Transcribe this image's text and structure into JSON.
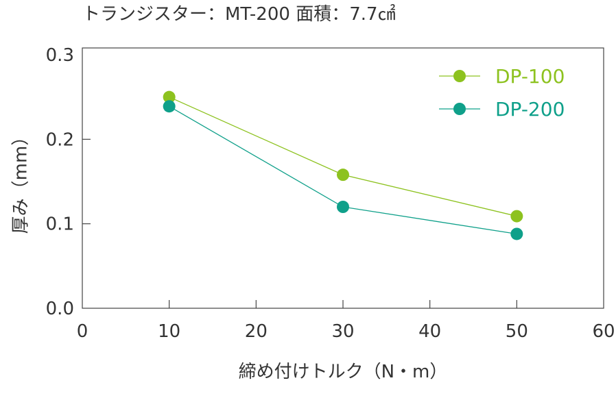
{
  "chart_data": {
    "type": "line",
    "title": "トランジスター：MT-200  面積：7.7㎠",
    "xlabel": "締め付けトルク（N・m）",
    "ylabel": "厚み（mm）",
    "xlim": [
      0,
      60
    ],
    "ylim": [
      0.0,
      0.3
    ],
    "xticks": [
      0,
      10,
      20,
      30,
      40,
      50,
      60
    ],
    "xtick_labels": [
      "0",
      "10",
      "20",
      "30",
      "40",
      "50",
      "60"
    ],
    "yticks": [
      0.0,
      0.1,
      0.2,
      0.3
    ],
    "ytick_labels": [
      "0.0",
      "0.1",
      "0.2",
      "0.3"
    ],
    "grid": false,
    "legend_position": "top-right",
    "series": [
      {
        "name": "DP-100",
        "color": "#8dc21f",
        "x": [
          10,
          30,
          50
        ],
        "y": [
          0.25,
          0.158,
          0.109
        ]
      },
      {
        "name": "DP-200",
        "color": "#0fa08a",
        "x": [
          10,
          30,
          50
        ],
        "y": [
          0.239,
          0.12,
          0.088
        ]
      }
    ]
  }
}
